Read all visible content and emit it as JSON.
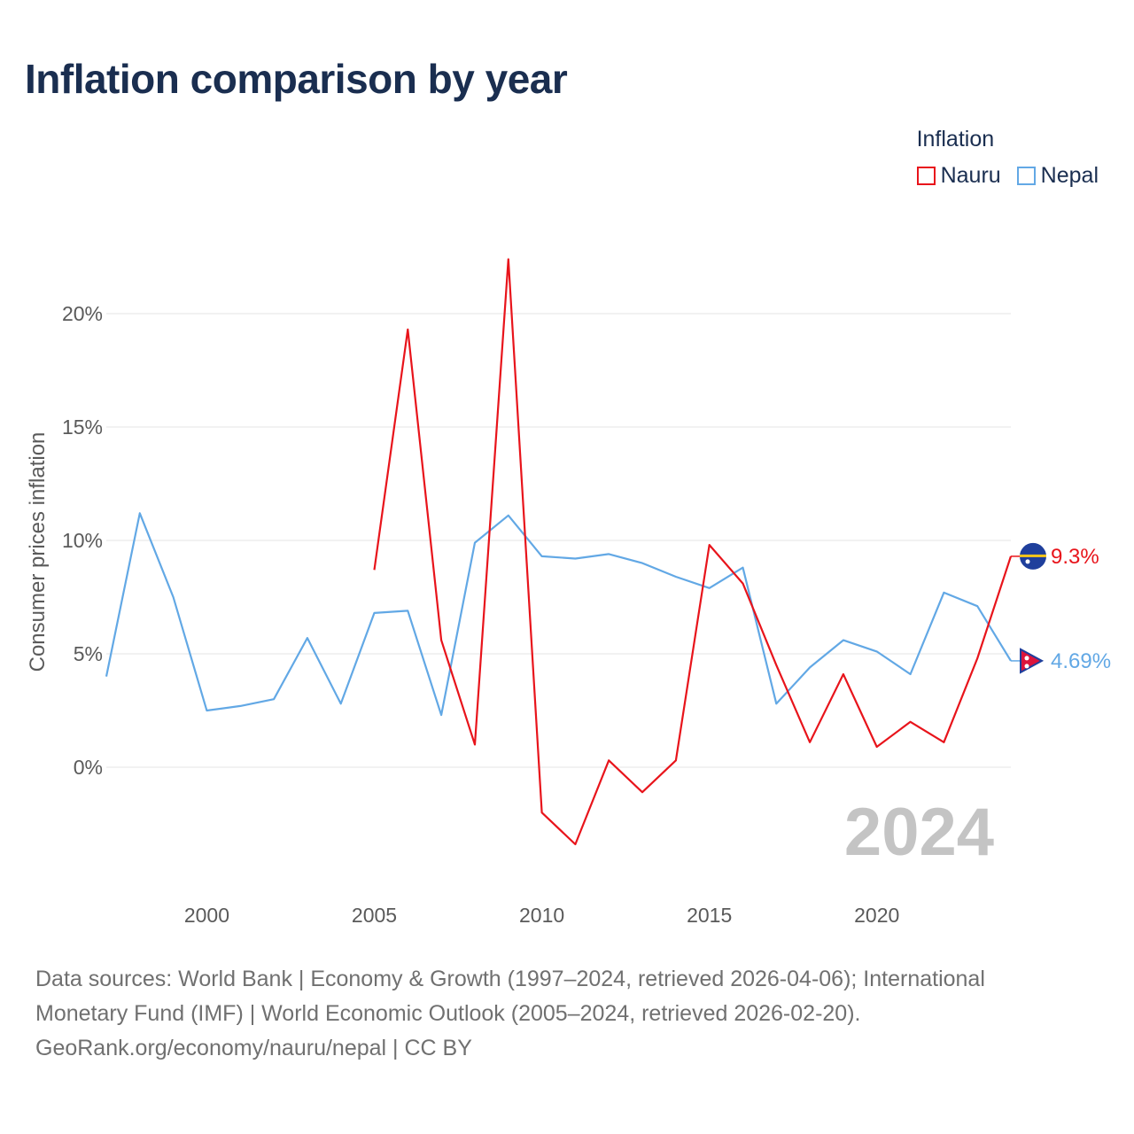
{
  "title": "Inflation comparison by year",
  "legend": {
    "title": "Inflation",
    "items": [
      {
        "name": "Nauru",
        "color": "#e8141b"
      },
      {
        "name": "Nepal",
        "color": "#62a8e5"
      }
    ]
  },
  "footer": {
    "line1": "Data sources: World Bank | Economy & Growth (1997–2024, retrieved 2026-04-06); International",
    "line2": "Monetary Fund (IMF) | World Economic Outlook (2005–2024, retrieved 2026-02-20).",
    "line3": "GeoRank.org/economy/nauru/nepal | CC BY"
  },
  "chart_data": {
    "type": "line",
    "title": "Inflation comparison by year",
    "xlabel": "",
    "ylabel": "Consumer prices inflation",
    "xlim": [
      1997,
      2024
    ],
    "ylim": [
      -5.5,
      23.5
    ],
    "x_ticks": [
      2000,
      2005,
      2010,
      2015,
      2020
    ],
    "y_ticks": [
      0,
      5,
      10,
      15,
      20
    ],
    "y_tick_labels": [
      "0%",
      "5%",
      "10%",
      "15%",
      "20%"
    ],
    "grid": true,
    "legend_position": "top-right",
    "year_watermark": "2024",
    "series": [
      {
        "name": "Nauru",
        "color": "#e8141b",
        "x": [
          2005,
          2006,
          2007,
          2008,
          2009,
          2010,
          2011,
          2012,
          2013,
          2014,
          2015,
          2016,
          2017,
          2018,
          2019,
          2020,
          2021,
          2022,
          2023,
          2024
        ],
        "values": [
          8.7,
          19.3,
          5.6,
          1.0,
          22.4,
          -2.0,
          -3.4,
          0.3,
          -1.1,
          0.3,
          9.8,
          8.1,
          4.5,
          1.1,
          4.1,
          0.9,
          2.0,
          1.1,
          4.8,
          9.3
        ],
        "end_label": "9.3%"
      },
      {
        "name": "Nepal",
        "color": "#62a8e5",
        "x": [
          1997,
          1998,
          1999,
          2000,
          2001,
          2002,
          2003,
          2004,
          2005,
          2006,
          2007,
          2008,
          2009,
          2010,
          2011,
          2012,
          2013,
          2014,
          2015,
          2016,
          2017,
          2018,
          2019,
          2020,
          2021,
          2022,
          2023,
          2024
        ],
        "values": [
          4.0,
          11.2,
          7.5,
          2.5,
          2.7,
          3.0,
          5.7,
          2.8,
          6.8,
          6.9,
          2.3,
          9.9,
          11.1,
          9.3,
          9.2,
          9.4,
          9.0,
          8.4,
          7.9,
          8.8,
          2.8,
          4.4,
          5.6,
          5.1,
          4.1,
          7.7,
          7.1,
          4.69
        ],
        "end_label": "4.69%"
      }
    ]
  }
}
